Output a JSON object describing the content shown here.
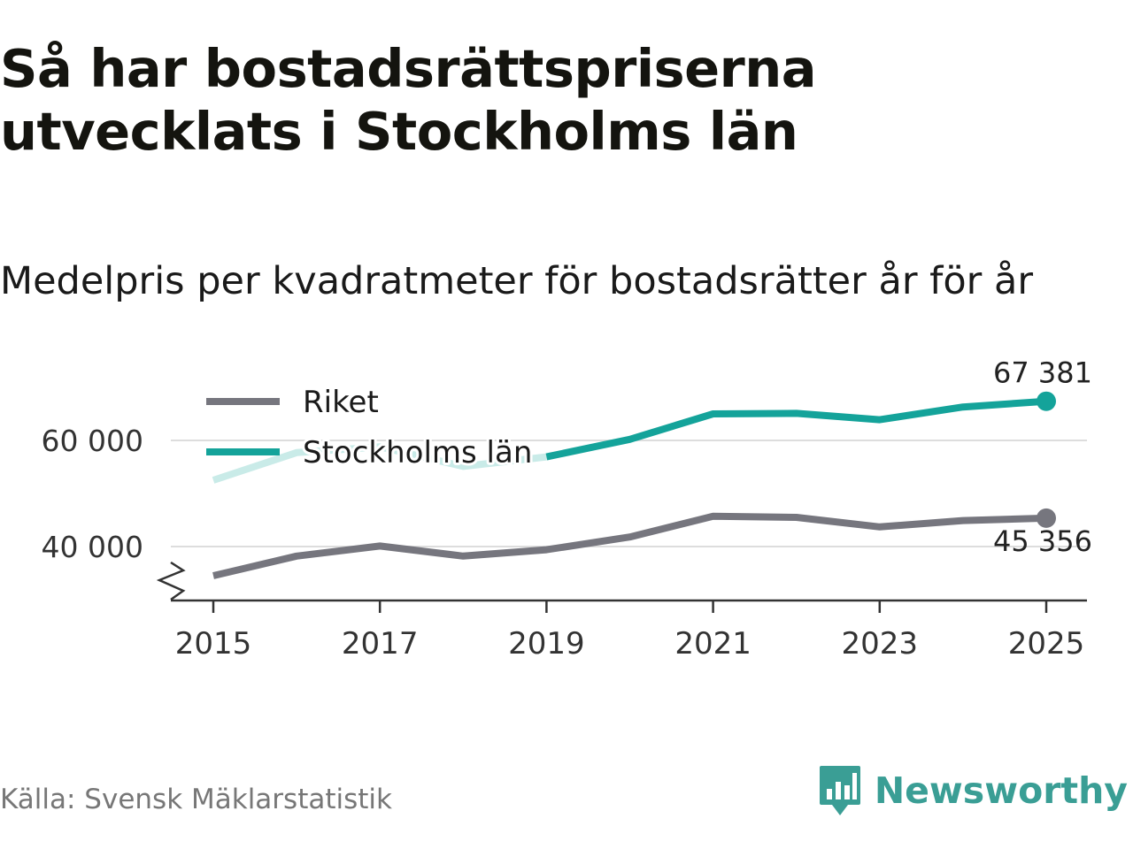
{
  "title": "Så har bostadsrättspriserna utvecklats i Stockholms län",
  "subtitle": "Medelpris per kvadratmeter för bostadsrätter år för år",
  "source": "Källa: Svensk Mäklarstatistik",
  "brand": {
    "name": "Newsworthy",
    "logo_icon": "bar-chart-speech-bubble-icon",
    "color": "#3a9e95"
  },
  "chart_data": {
    "type": "line",
    "x": [
      2015,
      2016,
      2017,
      2018,
      2019,
      2020,
      2021,
      2022,
      2023,
      2024,
      2025
    ],
    "series": [
      {
        "name": "Riket",
        "color": "#76767e",
        "values": [
          34500,
          38200,
          40100,
          38200,
          39400,
          41800,
          45700,
          45500,
          43700,
          44900,
          45356
        ],
        "end_label": "45 356"
      },
      {
        "name": "Stockholms län",
        "color": "#14a39a",
        "faded_color": "#c9ebe8",
        "faded_until": 2019,
        "values": [
          52500,
          57700,
          58800,
          55100,
          56900,
          60200,
          65000,
          65100,
          63900,
          66300,
          67381
        ],
        "end_label": "67 381"
      }
    ],
    "y_ticks": [
      {
        "value": 40000,
        "label": "40 000"
      },
      {
        "value": 60000,
        "label": "60 000"
      }
    ],
    "x_ticks": [
      {
        "value": 2015,
        "label": "2015"
      },
      {
        "value": 2017,
        "label": "2017"
      },
      {
        "value": 2019,
        "label": "2019"
      },
      {
        "value": 2021,
        "label": "2021"
      },
      {
        "value": 2023,
        "label": "2023"
      },
      {
        "value": 2025,
        "label": "2025"
      }
    ],
    "ylim": [
      30000,
      70000
    ],
    "xlim": [
      2015,
      2025
    ],
    "y_axis_break": true,
    "grid": true,
    "legend": "top-left",
    "xlabel": "",
    "ylabel": ""
  }
}
